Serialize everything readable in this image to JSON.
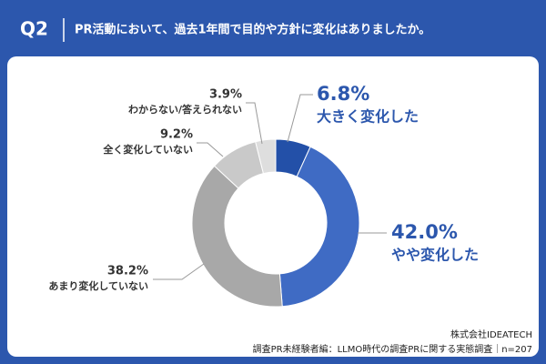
{
  "chart_data": {
    "type": "pie",
    "badge": "Q2",
    "title": "PR活動において、過去1年間で目的や方針に変化はありましたか。",
    "categories": [
      "大きく変化した",
      "やや変化した",
      "あまり変化していない",
      "全く変化していない",
      "わからない/答えられない"
    ],
    "values": [
      6.8,
      42.0,
      38.2,
      9.2,
      3.9
    ],
    "value_labels": [
      "6.8%",
      "42.0%",
      "38.2%",
      "9.2%",
      "3.9%"
    ],
    "colors": [
      "#2350a8",
      "#3f6bc4",
      "#a8a8a8",
      "#c9c9c9",
      "#dedede"
    ],
    "donut": true,
    "notes": [
      "株式会社IDEATECH",
      "調査PR未経験者編：LLMO時代の調査PRに関する実態調査｜n=207"
    ]
  }
}
